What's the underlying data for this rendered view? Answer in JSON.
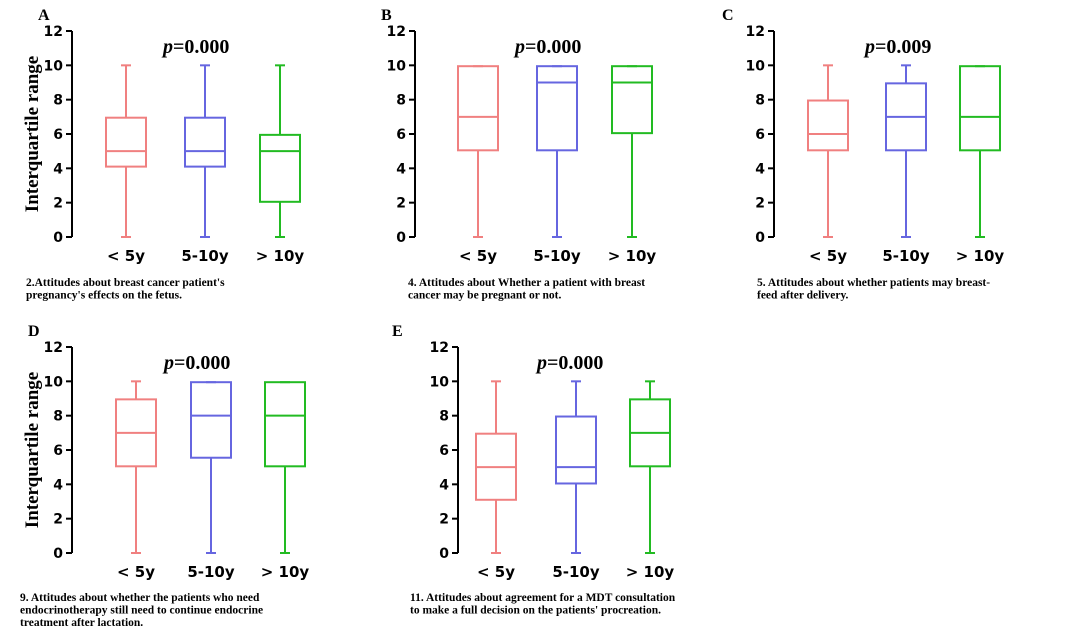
{
  "chart_data": [
    {
      "type": "boxplot",
      "panel": "A",
      "ylabel": "Interquartile range",
      "annotation": {
        "p_label": "p",
        "p_value": "=0.000"
      },
      "ylim": [
        0,
        12
      ],
      "yticks": [
        0,
        2,
        4,
        6,
        8,
        10,
        12
      ],
      "categories": [
        "< 5y",
        "5-10y",
        "> 10y"
      ],
      "series": [
        {
          "name": "< 5y",
          "color": "#f08080",
          "min": 0,
          "q1": 4.1,
          "median": 5,
          "q3": 6.95,
          "max": 10
        },
        {
          "name": "5-10y",
          "color": "#6666e0",
          "min": 0,
          "q1": 4.1,
          "median": 5,
          "q3": 6.95,
          "max": 10
        },
        {
          "name": "> 10y",
          "color": "#22bb22",
          "min": 0,
          "q1": 2.05,
          "median": 5,
          "q3": 5.95,
          "max": 10
        }
      ],
      "caption": [
        "2.Attitudes about breast cancer patient's",
        "pregnancy's effects on the fetus."
      ]
    },
    {
      "type": "boxplot",
      "panel": "B",
      "ylabel": "",
      "annotation": {
        "p_label": "p",
        "p_value": "=0.000"
      },
      "ylim": [
        0,
        12
      ],
      "yticks": [
        0,
        2,
        4,
        6,
        8,
        10,
        12
      ],
      "categories": [
        "< 5y",
        "5-10y",
        "> 10y"
      ],
      "series": [
        {
          "name": "< 5y",
          "color": "#f08080",
          "min": 0,
          "q1": 5.05,
          "median": 7,
          "q3": 9.95,
          "max": 9.95
        },
        {
          "name": "5-10y",
          "color": "#6666e0",
          "min": 0,
          "q1": 5.05,
          "median": 9,
          "q3": 9.95,
          "max": 9.95
        },
        {
          "name": "> 10y",
          "color": "#22bb22",
          "min": 0,
          "q1": 6.05,
          "median": 9,
          "q3": 9.95,
          "max": 9.95
        }
      ],
      "caption": [
        "4. Attitudes about Whether a patient with breast",
        "cancer may be pregnant or not."
      ]
    },
    {
      "type": "boxplot",
      "panel": "C",
      "ylabel": "",
      "annotation": {
        "p_label": "p",
        "p_value": "=0.009"
      },
      "ylim": [
        0,
        12
      ],
      "yticks": [
        0,
        2,
        4,
        6,
        8,
        10,
        12
      ],
      "categories": [
        "< 5y",
        "5-10y",
        "> 10y"
      ],
      "series": [
        {
          "name": "< 5y",
          "color": "#f08080",
          "min": 0,
          "q1": 5.05,
          "median": 6,
          "q3": 7.95,
          "max": 10
        },
        {
          "name": "5-10y",
          "color": "#6666e0",
          "min": 0,
          "q1": 5.05,
          "median": 7,
          "q3": 8.95,
          "max": 10
        },
        {
          "name": "> 10y",
          "color": "#22bb22",
          "min": 0,
          "q1": 5.05,
          "median": 7,
          "q3": 9.95,
          "max": 9.95
        }
      ],
      "caption": [
        "5. Attitudes about whether  patients may breast-",
        "feed after delivery."
      ]
    },
    {
      "type": "boxplot",
      "panel": "D",
      "ylabel": "Interquartile range",
      "annotation": {
        "p_label": "p",
        "p_value": "=0.000"
      },
      "ylim": [
        0,
        12
      ],
      "yticks": [
        0,
        2,
        4,
        6,
        8,
        10,
        12
      ],
      "categories": [
        "< 5y",
        "5-10y",
        "> 10y"
      ],
      "series": [
        {
          "name": "< 5y",
          "color": "#f08080",
          "min": 0,
          "q1": 5.05,
          "median": 7,
          "q3": 8.95,
          "max": 10
        },
        {
          "name": "5-10y",
          "color": "#6666e0",
          "min": 0,
          "q1": 5.55,
          "median": 8,
          "q3": 9.95,
          "max": 9.95
        },
        {
          "name": "> 10y",
          "color": "#22bb22",
          "min": 0,
          "q1": 5.05,
          "median": 8,
          "q3": 9.95,
          "max": 9.95
        }
      ],
      "caption": [
        "9. Attitudes about whether the patients who need",
        "endocrinotherapy still need to continue endocrine",
        "treatment after lactation."
      ]
    },
    {
      "type": "boxplot",
      "panel": "E",
      "ylabel": "",
      "annotation": {
        "p_label": "p",
        "p_value": "=0.000"
      },
      "ylim": [
        0,
        12
      ],
      "yticks": [
        0,
        2,
        4,
        6,
        8,
        10,
        12
      ],
      "categories": [
        "< 5y",
        "5-10y",
        "> 10y"
      ],
      "series": [
        {
          "name": "< 5y",
          "color": "#f08080",
          "min": 0,
          "q1": 3.1,
          "median": 5,
          "q3": 6.95,
          "max": 10
        },
        {
          "name": "5-10y",
          "color": "#6666e0",
          "min": 0,
          "q1": 4.05,
          "median": 5,
          "q3": 7.95,
          "max": 10
        },
        {
          "name": "> 10y",
          "color": "#22bb22",
          "min": 0,
          "q1": 5.05,
          "median": 7,
          "q3": 8.95,
          "max": 10
        }
      ],
      "caption": [
        "11. Attitudes about agreement for a MDT consultation",
        "to make a full decision on the patients' procreation."
      ]
    }
  ]
}
